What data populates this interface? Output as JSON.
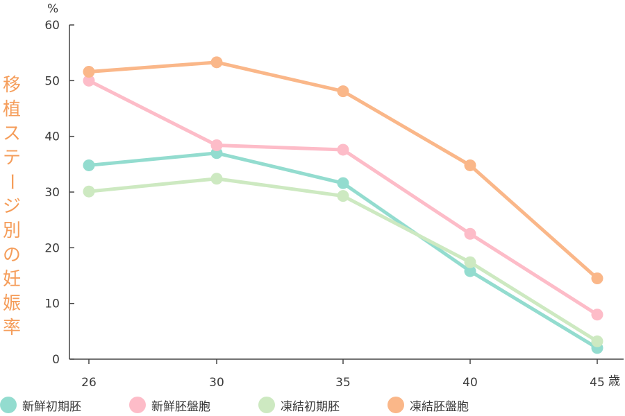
{
  "chart_data": {
    "type": "line",
    "ylabel": "移植ステージ別の妊娠率",
    "y_unit": "%",
    "x_unit": "歳",
    "x": [
      26,
      30,
      35,
      40,
      45
    ],
    "x_tick_labels": [
      "26",
      "30",
      "35",
      "40",
      "45"
    ],
    "ylim": [
      0,
      60
    ],
    "y_ticks": [
      0,
      10,
      20,
      30,
      40,
      50,
      60
    ],
    "grid": false,
    "legend_position": "bottom",
    "series": [
      {
        "name": "新鮮初期胚",
        "color": "#93dccf",
        "values": [
          34.8,
          37.0,
          31.6,
          15.8,
          2.0
        ]
      },
      {
        "name": "新鮮胚盤胞",
        "color": "#fdbcc8",
        "values": [
          50.0,
          38.4,
          37.6,
          22.5,
          8.0
        ]
      },
      {
        "name": "凍結初期胚",
        "color": "#cde9c1",
        "values": [
          30.1,
          32.4,
          29.3,
          17.4,
          3.2
        ]
      },
      {
        "name": "凍結胚盤胞",
        "color": "#fab789",
        "values": [
          51.6,
          53.3,
          48.1,
          34.8,
          14.5
        ]
      }
    ]
  }
}
